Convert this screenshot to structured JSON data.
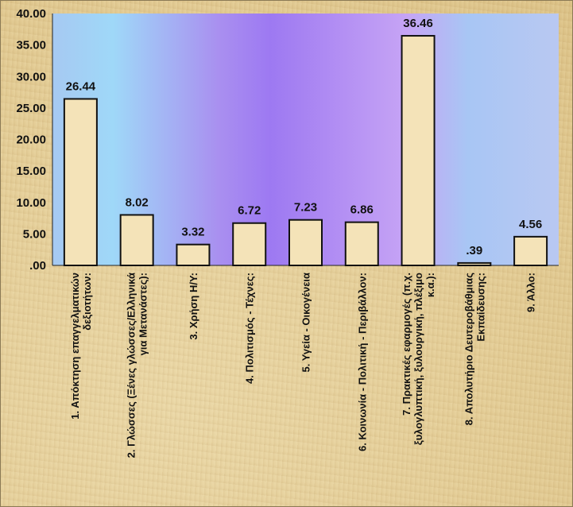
{
  "chart_data": {
    "type": "bar",
    "title": "",
    "xlabel": "",
    "ylabel": "",
    "ylim": [
      0,
      40
    ],
    "yticks": [
      ".00",
      "5.00",
      "10.00",
      "15.00",
      "20.00",
      "25.00",
      "30.00",
      "35.00",
      "40.00"
    ],
    "categories": [
      [
        "1. Απόκτηση επαγγελματικών",
        "δεξιοτήτων:"
      ],
      [
        "2. Γλώσσες (Ξένες γλώσσες/Ελληνικά",
        "για Μετανάστες):"
      ],
      [
        "3. Χρήση Η/Υ:"
      ],
      [
        "4. Πολιτισμός - Τέχνες:"
      ],
      [
        "5. Υγεία - Οικογένεια"
      ],
      [
        "6. Κοινωνία - Πολιτική - Περιβάλλον:"
      ],
      [
        "7. Πρακτικές εφαρμογές (π.χ.",
        "ξυλογλυπτική, ξυλουργική, πλέξιμο",
        "κ.α.):"
      ],
      [
        "8. Απολυτήριο Δευτεροβάθμιας",
        "Εκπαίδευσης:"
      ],
      [
        "9. Άλλο:"
      ]
    ],
    "values": [
      26.44,
      8.02,
      3.32,
      6.72,
      7.23,
      6.86,
      36.46,
      0.39,
      4.56
    ],
    "value_labels": [
      "26.44",
      "8.02",
      "3.32",
      "6.72",
      "7.23",
      "6.86",
      "36.46",
      ".39",
      "4.56"
    ],
    "grid": false,
    "legend": "none"
  }
}
